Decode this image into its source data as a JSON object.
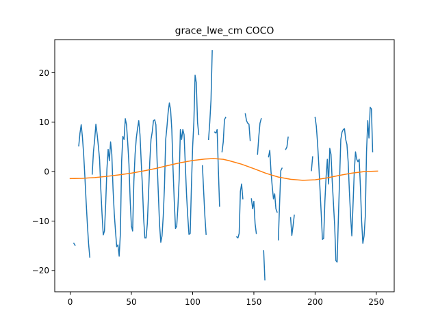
{
  "chart_data": {
    "type": "line",
    "title": "grace_lwe_cm COCO",
    "xlabel": "",
    "ylabel": "",
    "xlim": [
      -12.6,
      264.6
    ],
    "ylim": [
      -24.3,
      26.7
    ],
    "xticks": [
      0,
      50,
      100,
      150,
      200,
      250
    ],
    "yticks": [
      -20,
      -10,
      0,
      10,
      20
    ],
    "grid": false,
    "series": [
      {
        "color": "#1f77b4",
        "segments": [
          [
            [
              3,
              -14.5
            ],
            [
              4,
              -14.9
            ]
          ],
          [
            [
              7,
              5.2
            ],
            [
              8,
              7.8
            ],
            [
              9,
              9.5
            ],
            [
              10,
              7
            ],
            [
              11,
              3.5
            ],
            [
              12,
              -1
            ],
            [
              13,
              -6
            ],
            [
              14,
              -10.5
            ],
            [
              15,
              -14.5
            ],
            [
              16,
              -17.3
            ]
          ],
          [
            [
              18,
              -0.5
            ],
            [
              19,
              4
            ],
            [
              20,
              6.5
            ],
            [
              21,
              9.6
            ],
            [
              22,
              7.6
            ],
            [
              23,
              5.2
            ],
            [
              24,
              2.5
            ],
            [
              25,
              -3.5
            ],
            [
              26,
              -8.5
            ],
            [
              27,
              -12.8
            ],
            [
              28,
              -12
            ],
            [
              29,
              -6.5
            ],
            [
              30,
              0.5
            ],
            [
              31,
              4.5
            ],
            [
              32,
              2.2
            ],
            [
              33,
              6
            ],
            [
              34,
              3.5
            ],
            [
              35,
              -3.5
            ],
            [
              36,
              -8.5
            ],
            [
              37,
              -12
            ],
            [
              38,
              -15.2
            ],
            [
              39,
              -14.8
            ],
            [
              40,
              -17.1
            ],
            [
              41,
              -12.5
            ],
            [
              42,
              2
            ],
            [
              43,
              7.1
            ],
            [
              44,
              6.5
            ],
            [
              45,
              10.7
            ],
            [
              46,
              9.5
            ],
            [
              47,
              5.8
            ],
            [
              48,
              1.5
            ],
            [
              49,
              -5.8
            ],
            [
              50,
              -11
            ],
            [
              51,
              -12
            ],
            [
              52,
              -2
            ],
            [
              53,
              3.5
            ],
            [
              54,
              6.8
            ],
            [
              55,
              8.7
            ],
            [
              56,
              10.3
            ],
            [
              57,
              7.5
            ],
            [
              58,
              2
            ],
            [
              59,
              -3
            ],
            [
              60,
              -9.5
            ],
            [
              61,
              -13.4
            ],
            [
              62,
              -13.4
            ],
            [
              63,
              -10.5
            ],
            [
              64,
              -4.5
            ],
            [
              65,
              2
            ],
            [
              66,
              6.5
            ],
            [
              67,
              8
            ],
            [
              68,
              10.3
            ],
            [
              69,
              10.5
            ],
            [
              70,
              9.5
            ],
            [
              71,
              2
            ],
            [
              72,
              -4.5
            ],
            [
              73,
              -10.8
            ],
            [
              74,
              -14.3
            ],
            [
              75,
              -13
            ],
            [
              76,
              -9
            ],
            [
              77,
              -3
            ],
            [
              78,
              6.5
            ],
            [
              79,
              9
            ],
            [
              80,
              12
            ],
            [
              81,
              13.9
            ],
            [
              82,
              12.5
            ],
            [
              83,
              8.5
            ],
            [
              84,
              0.5
            ],
            [
              85,
              -6
            ],
            [
              86,
              -11.5
            ],
            [
              87,
              -11
            ],
            [
              88,
              -7
            ],
            [
              89,
              -1.5
            ],
            [
              90,
              8.5
            ],
            [
              91,
              6.5
            ],
            [
              92,
              8.5
            ],
            [
              93,
              7.5
            ],
            [
              94,
              1.5
            ],
            [
              95,
              -4.5
            ],
            [
              96,
              -9
            ],
            [
              97,
              -12.7
            ],
            [
              98,
              -12.5
            ],
            [
              99,
              -3
            ],
            [
              100,
              5
            ],
            [
              101,
              10
            ],
            [
              102,
              19.5
            ],
            [
              103,
              18
            ],
            [
              104,
              10
            ],
            [
              105,
              7.5
            ]
          ],
          [
            [
              108,
              1.2
            ],
            [
              109,
              -4
            ],
            [
              110,
              -9
            ],
            [
              111,
              -12.7
            ]
          ],
          [
            [
              113,
              6.5
            ],
            [
              114,
              10
            ],
            [
              115,
              14.5
            ],
            [
              116,
              24.5
            ]
          ],
          [
            [
              118,
              8
            ],
            [
              119,
              7.8
            ],
            [
              120,
              8.5
            ],
            [
              121,
              0.5
            ],
            [
              122,
              -7
            ]
          ],
          [
            [
              124,
              4
            ],
            [
              125,
              6
            ],
            [
              126,
              10.5
            ],
            [
              127,
              11
            ]
          ],
          [
            [
              136,
              -13.2
            ],
            [
              137,
              -13.4
            ],
            [
              138,
              -12.5
            ],
            [
              139,
              -4
            ],
            [
              140,
              -2.5
            ],
            [
              141,
              -5.5
            ]
          ],
          [
            [
              143,
              11.7
            ],
            [
              144,
              10.3
            ],
            [
              145,
              9.8
            ],
            [
              146,
              9.6
            ],
            [
              147,
              6.3
            ]
          ],
          [
            [
              148,
              -5.5
            ],
            [
              149,
              -7.5
            ],
            [
              150,
              -6
            ],
            [
              151,
              -10.5
            ],
            [
              152,
              -12.5
            ]
          ],
          [
            [
              153,
              3.5
            ],
            [
              154,
              7
            ],
            [
              155,
              9.8
            ],
            [
              156,
              10.7
            ]
          ],
          [
            [
              158,
              -16
            ],
            [
              159,
              -21.9
            ]
          ],
          [
            [
              162,
              3
            ],
            [
              163,
              4.3
            ],
            [
              164,
              0
            ],
            [
              165,
              -3
            ],
            [
              166,
              -5.5
            ],
            [
              167,
              -4.5
            ],
            [
              168,
              -7.5
            ],
            [
              169,
              -8.2
            ]
          ],
          [
            [
              170,
              -13.8
            ],
            [
              171,
              -6.5
            ],
            [
              172,
              0.2
            ],
            [
              173,
              0.7
            ]
          ],
          [
            [
              176,
              4.5
            ],
            [
              177,
              5
            ],
            [
              178,
              7
            ]
          ],
          [
            [
              180,
              -9.3
            ],
            [
              181,
              -12.9
            ],
            [
              182,
              -11
            ],
            [
              183,
              -8.8
            ]
          ],
          [
            [
              197,
              0.2
            ],
            [
              198,
              3
            ]
          ],
          [
            [
              200,
              11
            ],
            [
              201,
              9.2
            ],
            [
              202,
              5.8
            ],
            [
              203,
              1.5
            ],
            [
              204,
              -3.5
            ],
            [
              205,
              -8.5
            ],
            [
              206,
              -13.7
            ],
            [
              207,
              -13.5
            ],
            [
              208,
              -6
            ],
            [
              209,
              -1
            ],
            [
              210,
              2.5
            ],
            [
              211,
              -2.5
            ],
            [
              212,
              4.7
            ],
            [
              213,
              3.5
            ],
            [
              214,
              -2
            ],
            [
              215,
              -6.5
            ],
            [
              216,
              -11
            ],
            [
              217,
              -18
            ],
            [
              218,
              -18.3
            ],
            [
              219,
              -9.5
            ],
            [
              220,
              -1.5
            ],
            [
              221,
              6.5
            ],
            [
              222,
              8
            ],
            [
              223,
              8.5
            ],
            [
              224,
              8.7
            ],
            [
              225,
              6.5
            ],
            [
              226,
              5.5
            ],
            [
              227,
              2
            ],
            [
              228,
              -4
            ],
            [
              229,
              -9
            ],
            [
              230,
              -13
            ],
            [
              231,
              -6.5
            ],
            [
              232,
              0
            ],
            [
              233,
              4
            ],
            [
              234,
              2.5
            ],
            [
              235,
              2
            ],
            [
              236,
              2.5
            ],
            [
              237,
              -3
            ],
            [
              238,
              -10
            ],
            [
              239,
              -14.5
            ],
            [
              240,
              -13
            ],
            [
              241,
              -9
            ],
            [
              242,
              4
            ],
            [
              243,
              10.3
            ],
            [
              244,
              6.8
            ],
            [
              245,
              13
            ],
            [
              246,
              12.7
            ],
            [
              247,
              4
            ]
          ]
        ]
      },
      {
        "color": "#ff7f0e",
        "segments": [
          [
            [
              0,
              -1.4
            ],
            [
              10,
              -1.35
            ],
            [
              20,
              -1.2
            ],
            [
              30,
              -0.95
            ],
            [
              40,
              -0.65
            ],
            [
              50,
              -0.3
            ],
            [
              60,
              0.15
            ],
            [
              70,
              0.65
            ],
            [
              80,
              1.25
            ],
            [
              90,
              1.8
            ],
            [
              100,
              2.25
            ],
            [
              110,
              2.55
            ],
            [
              117,
              2.65
            ],
            [
              125,
              2.5
            ],
            [
              130,
              2.2
            ],
            [
              140,
              1.5
            ],
            [
              150,
              0.6
            ],
            [
              160,
              -0.35
            ],
            [
              170,
              -1.1
            ],
            [
              180,
              -1.55
            ],
            [
              190,
              -1.75
            ],
            [
              200,
              -1.65
            ],
            [
              210,
              -1.25
            ],
            [
              220,
              -0.75
            ],
            [
              230,
              -0.3
            ],
            [
              240,
              0
            ],
            [
              251,
              0.1
            ]
          ]
        ]
      }
    ]
  }
}
